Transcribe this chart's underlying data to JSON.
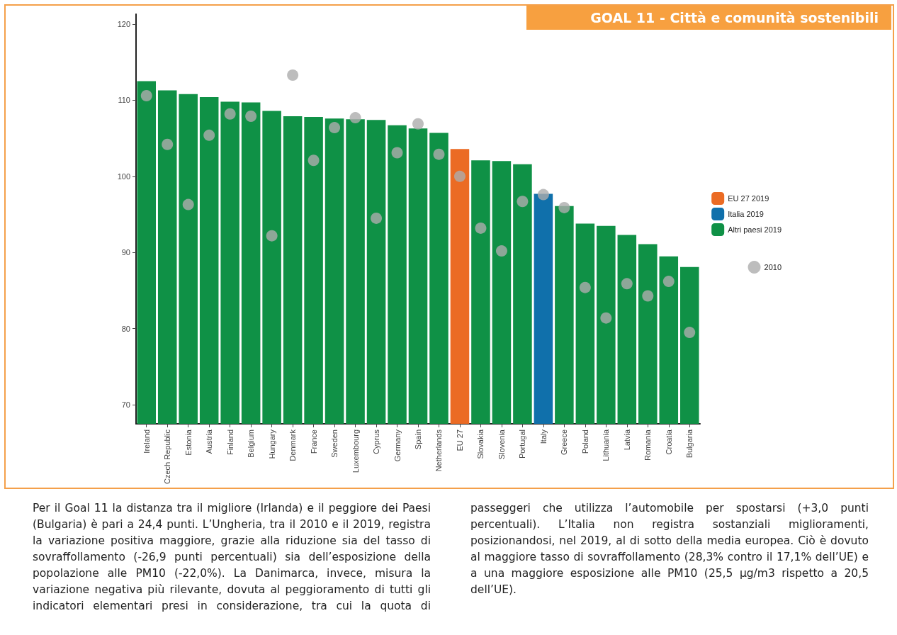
{
  "chart_data": {
    "type": "bar",
    "title": "GOAL 11 - Città e comunità sostenibili",
    "categories": [
      "Ireland",
      "Czech Republic",
      "Estonia",
      "Austria",
      "Finland",
      "Belgium",
      "Hungary",
      "Denmark",
      "France",
      "Sweden",
      "Luxembourg",
      "Cyprus",
      "Germany",
      "Spain",
      "Netherlands",
      "EU 27",
      "Slovakia",
      "Slovenia",
      "Portugal",
      "Italy",
      "Greece",
      "Poland",
      "Lithuania",
      "Latvia",
      "Romania",
      "Croatia",
      "Bulgaria"
    ],
    "stacked": true,
    "series": [
      {
        "name": "EU 27 2019",
        "color": "#eb6b24",
        "values": [
          null,
          null,
          null,
          null,
          null,
          null,
          null,
          null,
          null,
          null,
          null,
          null,
          null,
          null,
          null,
          103.6,
          null,
          null,
          null,
          null,
          null,
          null,
          null,
          null,
          null,
          null,
          null
        ]
      },
      {
        "name": "Italia 2019",
        "color": "#1070ab",
        "values": [
          null,
          null,
          null,
          null,
          null,
          null,
          null,
          null,
          null,
          null,
          null,
          null,
          null,
          null,
          null,
          null,
          null,
          null,
          null,
          97.7,
          null,
          null,
          null,
          null,
          null,
          null,
          null
        ]
      },
      {
        "name": "Altri paesi 2019",
        "color": "#0f9146",
        "values": [
          112.5,
          111.3,
          110.8,
          110.4,
          109.8,
          109.7,
          108.6,
          107.9,
          107.8,
          107.6,
          107.5,
          107.4,
          106.7,
          106.3,
          105.7,
          null,
          102.1,
          102.0,
          101.6,
          null,
          96.1,
          93.8,
          93.5,
          92.3,
          91.1,
          89.5,
          88.1
        ]
      },
      {
        "name": "2010",
        "type": "scatter",
        "color": "#acacac",
        "marker": "circle",
        "x": [
          "Ireland",
          "Czech Republic",
          "Estonia",
          "Austria",
          "Finland",
          "Belgium",
          "Hungary",
          "Denmark",
          "France",
          "Sweden",
          "Luxembourg",
          "Cyprus",
          "Germany",
          "Spain",
          "Netherlands",
          "EU 27",
          "Slovakia",
          "Slovenia",
          "Portugal",
          "Italy",
          "Greece",
          "Poland",
          "Lithuania",
          "Latvia",
          "Romania",
          "Croatia",
          "Bulgaria"
        ],
        "values": [
          110.6,
          104.2,
          96.3,
          105.4,
          108.2,
          107.9,
          92.2,
          113.3,
          102.1,
          106.4,
          107.7,
          94.5,
          103.1,
          106.9,
          102.9,
          100.0,
          93.2,
          90.2,
          96.7,
          97.6,
          95.9,
          85.4,
          81.4,
          85.9,
          84.3,
          86.2,
          79.5
        ]
      }
    ],
    "ylim": [
      67.5,
      121.3
    ],
    "yticks": [
      70,
      80,
      90,
      100,
      110,
      120
    ],
    "grid": false,
    "legend": "right",
    "annotations": [
      "Per il Goal 11 la distanza tra il migliore (Irlanda) e il peggiore dei Paesi (Bulgaria) è pari a 24,4 punti. L’Ungheria, tra il 2010 e il 2019, registra la variazione positiva maggiore, grazie alla riduzione sia del tasso di sovraffollamento (-26,9 punti percentuali) sia dell’esposizione della popolazione alle PM10 (-22,0%). La Danimarca, invece, misura la variazione negativa più rilevante, dovuta al peggioramento di tutti gli indicatori elementari presi in considerazione, tra cui la quota di passeggeri che utilizza l’automobile per spostarsi (+3,0 punti percentuali). L’Italia non registra sostanziali miglioramenti, posizionandosi, nel 2019, al di sotto della media europea. Ciò è dovuto al maggiore tasso di sovraffollamento (28,3% contro il 17,1% dell’UE) e a una maggiore esposizione alle PM10 (25,5 µg/m3 rispetto a 20,5 dell’UE)."
    ]
  }
}
